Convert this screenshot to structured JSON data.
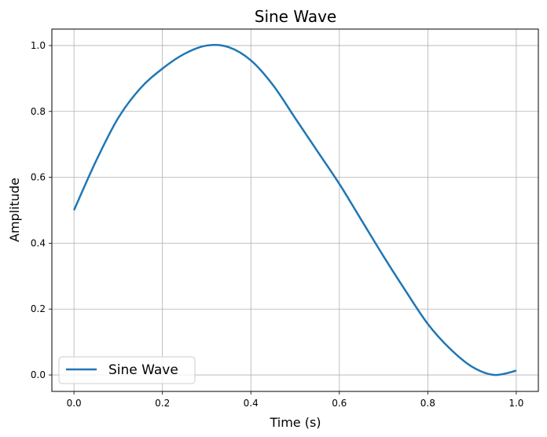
{
  "chart_data": {
    "type": "line",
    "title": "Sine Wave",
    "xlabel": "Time (s)",
    "ylabel": "Amplitude",
    "xlim": [
      -0.05,
      1.05
    ],
    "ylim": [
      -0.05,
      1.05
    ],
    "grid": true,
    "legend_position": "lower-left",
    "x_ticks": [
      0.0,
      0.2,
      0.4,
      0.6,
      0.8,
      1.0
    ],
    "x_tick_labels": [
      "0.0",
      "0.2",
      "0.4",
      "0.6",
      "0.8",
      "1.0"
    ],
    "y_ticks": [
      0.0,
      0.2,
      0.4,
      0.6,
      0.8,
      1.0
    ],
    "y_tick_labels": [
      "0.0",
      "0.2",
      "0.4",
      "0.6",
      "0.8",
      "1.0"
    ],
    "series": [
      {
        "name": "Sine Wave",
        "color": "#1f77b4",
        "x": [
          0.0,
          0.05,
          0.1,
          0.15,
          0.2,
          0.25,
          0.3,
          0.35,
          0.4,
          0.45,
          0.5,
          0.55,
          0.6,
          0.65,
          0.7,
          0.75,
          0.8,
          0.85,
          0.9,
          0.95,
          1.0
        ],
        "y": [
          0.5,
          0.65,
          0.78,
          0.87,
          0.93,
          0.975,
          1.0,
          0.995,
          0.955,
          0.88,
          0.78,
          0.68,
          0.58,
          0.47,
          0.36,
          0.255,
          0.155,
          0.08,
          0.025,
          0.0,
          0.013
        ]
      }
    ]
  }
}
